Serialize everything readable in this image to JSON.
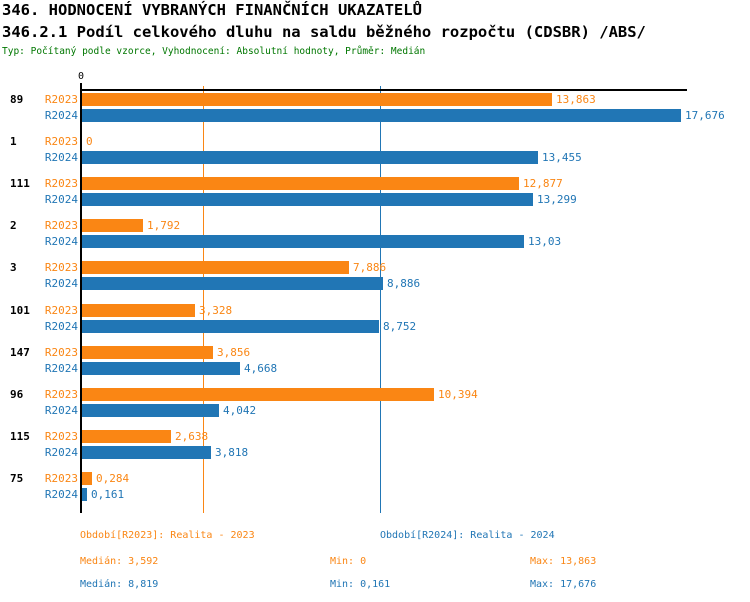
{
  "header": {
    "title": "346. HODNOCENÍ VYBRANÝCH FINANČNÍCH UKAZATELŮ",
    "subtitle": "346.2.1 Podíl celkového dluhu na saldu běžného rozpočtu (CDSBR) /ABS/",
    "meta": "Typ: Počítaný podle vzorce, Vyhodnocení: Absolutní hodnoty, Průměr: Medián",
    "meta_color": "#007700"
  },
  "colors": {
    "r2023_orange": "#FA8614",
    "r2024_blue": "#2176B5",
    "axis_black": "#000000",
    "background": "#FFFFFF"
  },
  "chart_data": {
    "type": "bar",
    "orientation": "horizontal",
    "title": "346.2.1 Podíl celkového dluhu na saldu běžného rozpočtu (CDSBR) /ABS/",
    "categories": [
      "89",
      "1",
      "111",
      "2",
      "3",
      "101",
      "147",
      "96",
      "115",
      "75"
    ],
    "series": [
      {
        "name": "R2023",
        "color": "#FA8614",
        "values": [
          13.863,
          0,
          12.877,
          1.792,
          7.886,
          3.328,
          3.856,
          10.394,
          2.638,
          0.284
        ],
        "labels": [
          "13,863",
          "0",
          "12,877",
          "1,792",
          "7,886",
          "3,328",
          "3,856",
          "10,394",
          "2,638",
          "0,284"
        ]
      },
      {
        "name": "R2024",
        "color": "#2176B5",
        "values": [
          17.676,
          13.455,
          13.299,
          13.03,
          8.886,
          8.752,
          4.668,
          4.042,
          3.818,
          0.161
        ],
        "labels": [
          "17,676",
          "13,455",
          "13,299",
          "13,03",
          "8,886",
          "8,752",
          "4,668",
          "4,042",
          "3,818",
          "0,161"
        ]
      }
    ],
    "x_axis": {
      "zero_label": "0",
      "min": 0,
      "max": 17.85,
      "grid": false
    },
    "reference_lines": [
      {
        "name": "median-2023",
        "value": 3.592,
        "color": "#FA8614"
      },
      {
        "name": "median-2024",
        "value": 8.819,
        "color": "#2176B5"
      }
    ],
    "legend_position": "bottom",
    "legend": [
      {
        "label": "Období[R2023]: Realita - 2023",
        "color": "#FA8614"
      },
      {
        "label": "Období[R2024]: Realita - 2024",
        "color": "#2176B5"
      }
    ],
    "stats": [
      {
        "median": "Medián: 3,592",
        "min": "Min: 0",
        "max": "Max: 13,863",
        "color": "#FA8614"
      },
      {
        "median": "Medián: 8,819",
        "min": "Min: 0,161",
        "max": "Max: 17,676",
        "color": "#2176B5"
      }
    ]
  }
}
